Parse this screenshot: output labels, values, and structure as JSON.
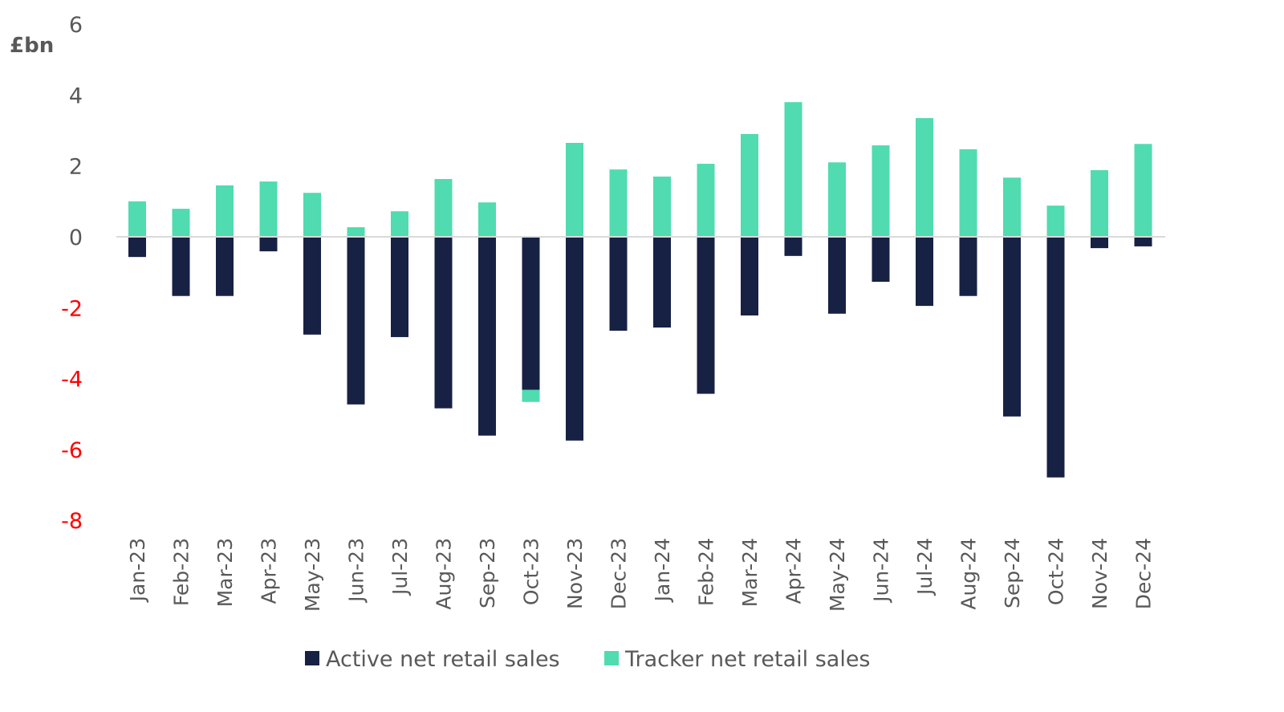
{
  "chart_data": {
    "type": "bar",
    "stacked": true,
    "title": "",
    "ylabel": "£bn",
    "xlabel": "",
    "ylim": [
      -8,
      6
    ],
    "yticks": [
      6,
      4,
      2,
      0,
      -2,
      -4,
      -6,
      -8
    ],
    "grid": false,
    "legend_position": "bottom",
    "negative_tick_color": "#FF0000",
    "categories": [
      "Jan-23",
      "Feb-23",
      "Mar-23",
      "Apr-23",
      "May-23",
      "Jun-23",
      "Jul-23",
      "Aug-23",
      "Sep-23",
      "Oct-23",
      "Nov-23",
      "Dec-23",
      "Jan-24",
      "Feb-24",
      "Mar-24",
      "Apr-24",
      "May-24",
      "Jun-24",
      "Jul-24",
      "Aug-24",
      "Sep-24",
      "Oct-24",
      "Nov-24",
      "Dec-24"
    ],
    "series": [
      {
        "name": "Active net retail sales",
        "color": "#172144",
        "values": [
          -0.57,
          -1.67,
          -1.67,
          -0.41,
          -2.76,
          -4.73,
          -2.83,
          -4.84,
          -5.61,
          -4.32,
          -5.75,
          -2.65,
          -2.56,
          -4.43,
          -2.22,
          -0.54,
          -2.17,
          -1.27,
          -1.95,
          -1.67,
          -5.07,
          -6.79,
          -0.32,
          -0.27
        ]
      },
      {
        "name": "Tracker net retail sales",
        "color": "#50DBB0",
        "values": [
          1.0,
          0.79,
          1.45,
          1.56,
          1.24,
          0.27,
          0.72,
          1.63,
          0.97,
          -0.34,
          2.65,
          1.9,
          1.7,
          2.06,
          2.9,
          3.8,
          2.1,
          2.58,
          3.35,
          2.47,
          1.67,
          0.88,
          1.88,
          2.62
        ]
      }
    ]
  }
}
